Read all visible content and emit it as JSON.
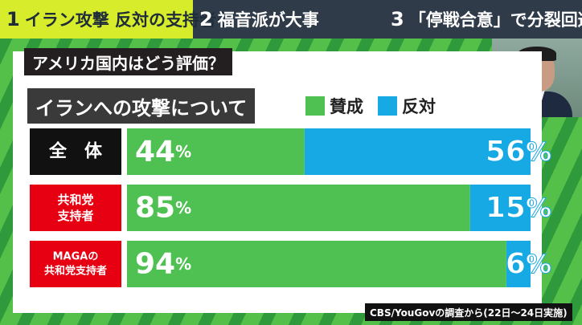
{
  "topbar": {
    "items": [
      {
        "num": "1",
        "label": "イラン攻撃 反対の支持者も",
        "active": true
      },
      {
        "num": "2",
        "label": "福音派が大事",
        "active": false
      },
      {
        "num": "3",
        "label": "「停戦合意」で分裂回避",
        "active": false
      }
    ]
  },
  "colors": {
    "approve": "#4fc152",
    "oppose": "#16a9e4",
    "label_all": "#111111",
    "label_party": "#e60012"
  },
  "subtitle": "アメリカ国内はどう評価？",
  "question": "イランへの攻撃について",
  "legend": {
    "approve": "賛成",
    "oppose": "反対"
  },
  "chart_data": {
    "type": "bar",
    "orientation": "horizontal",
    "stacked": true,
    "categories": [
      "全　体",
      "共和党\n支持者",
      "MAGAの\n共和党支持者"
    ],
    "series": [
      {
        "name": "賛成",
        "values": [
          44,
          85,
          94
        ]
      },
      {
        "name": "反対",
        "values": [
          56,
          15,
          6
        ]
      }
    ],
    "unit": "%",
    "xlim": [
      0,
      100
    ]
  },
  "footnote": "CBS/YouGovの調査から(22日〜24日実施)"
}
